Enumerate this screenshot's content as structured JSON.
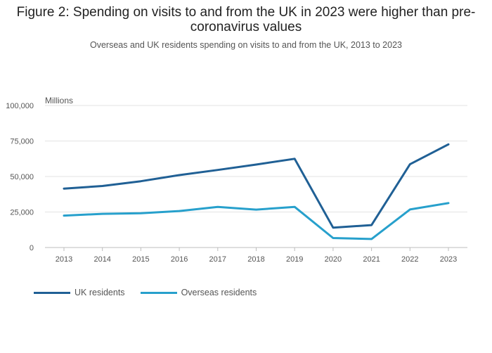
{
  "chart_data": {
    "type": "line",
    "title": "Figure 2: Spending on visits to and from the UK in 2023 were higher than pre-coronavirus values",
    "subtitle": "Overseas and UK residents spending on visits to and from the UK, 2013 to 2023",
    "unit_label": "Millions",
    "categories": [
      "2013",
      "2014",
      "2015",
      "2016",
      "2017",
      "2018",
      "2019",
      "2020",
      "2021",
      "2022",
      "2023"
    ],
    "series": [
      {
        "name": "UK residents",
        "color": "#206095",
        "values": [
          41500,
          43300,
          46700,
          51000,
          54600,
          58400,
          62500,
          14000,
          15800,
          58600,
          72600
        ]
      },
      {
        "name": "Overseas residents",
        "color": "#27a0cc",
        "values": [
          22500,
          23700,
          24100,
          25700,
          28600,
          26700,
          28600,
          6700,
          6000,
          26800,
          31300
        ]
      }
    ],
    "y_ticks": [
      0,
      25000,
      50000,
      75000,
      100000
    ],
    "y_tick_labels": [
      "0",
      "25,000",
      "50,000",
      "75,000",
      "100,000"
    ],
    "ylim": [
      0,
      100000
    ],
    "grid": true,
    "legend_position": "bottom-left"
  }
}
